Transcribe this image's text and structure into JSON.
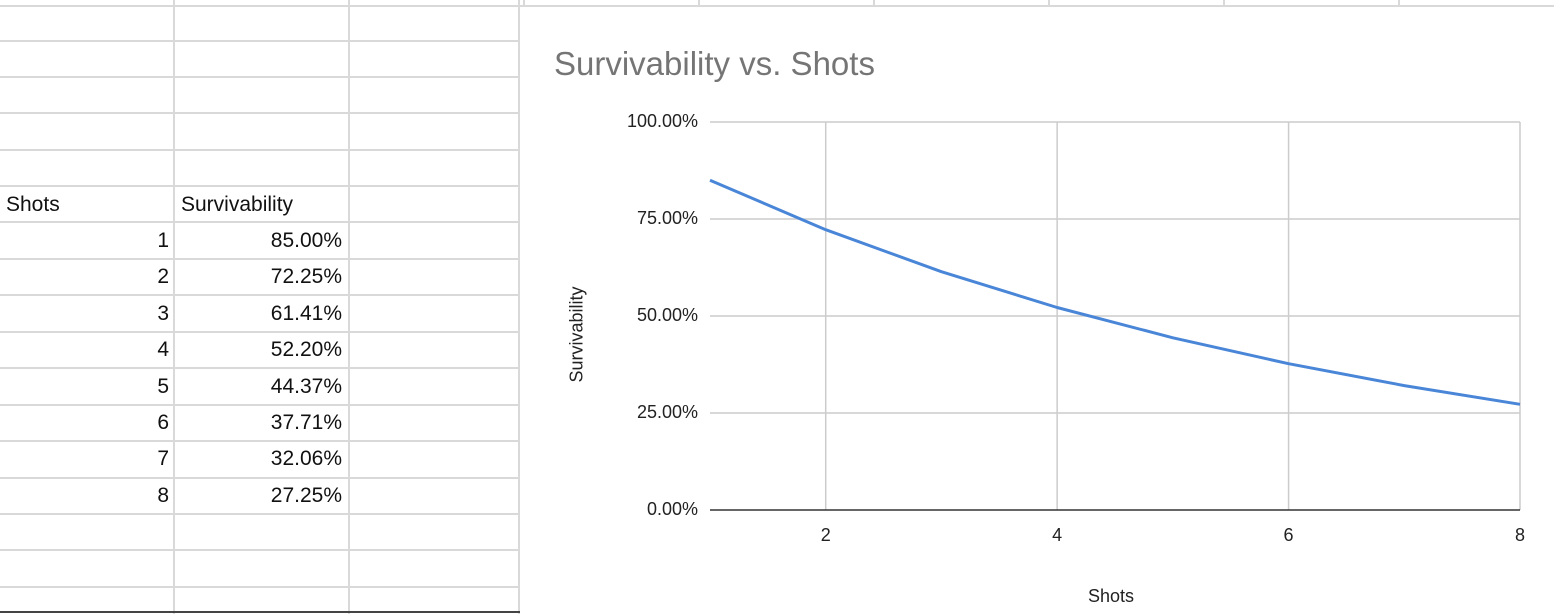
{
  "table": {
    "header": {
      "col_a": "Shots",
      "col_b": "Survivability"
    },
    "rows": [
      {
        "shots": "1",
        "survivability": "85.00%"
      },
      {
        "shots": "2",
        "survivability": "72.25%"
      },
      {
        "shots": "3",
        "survivability": "61.41%"
      },
      {
        "shots": "4",
        "survivability": "52.20%"
      },
      {
        "shots": "5",
        "survivability": "44.37%"
      },
      {
        "shots": "6",
        "survivability": "37.71%"
      },
      {
        "shots": "7",
        "survivability": "32.06%"
      },
      {
        "shots": "8",
        "survivability": "27.25%"
      }
    ]
  },
  "chart": {
    "title": "Survivability vs. Shots",
    "xlabel": "Shots",
    "ylabel": "Survivability",
    "y_ticks": [
      "100.00%",
      "75.00%",
      "50.00%",
      "25.00%",
      "0.00%"
    ],
    "x_ticks": [
      "2",
      "4",
      "6",
      "8"
    ]
  },
  "colors": {
    "line": "#4a86d8",
    "gridline": "#cccccc",
    "cell_border": "#d9d9d9",
    "title": "#757575"
  },
  "chart_data": {
    "type": "line",
    "title": "Survivability vs. Shots",
    "xlabel": "Shots",
    "ylabel": "Survivability",
    "x": [
      1,
      2,
      3,
      4,
      5,
      6,
      7,
      8
    ],
    "series": [
      {
        "values": [
          85.0,
          72.25,
          61.41,
          52.2,
          44.37,
          37.71,
          32.06,
          27.25
        ]
      }
    ],
    "xlim": [
      1,
      8
    ],
    "ylim": [
      0,
      100
    ],
    "y_unit": "%",
    "grid": true,
    "legend": "none"
  }
}
